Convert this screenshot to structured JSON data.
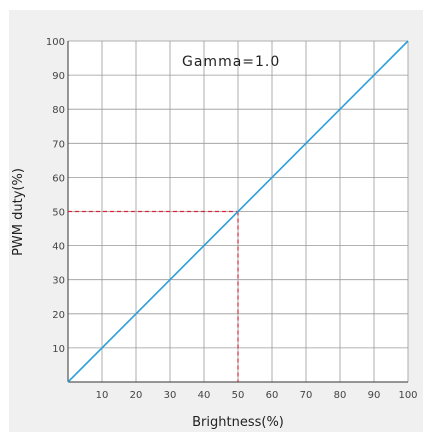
{
  "chart_data": {
    "type": "line",
    "title": "",
    "xlabel": "Brightness(%)",
    "ylabel": "PWM duty(%)",
    "xlim": [
      0,
      100
    ],
    "ylim": [
      0,
      100
    ],
    "x_ticks": [
      "10",
      "20",
      "30",
      "40",
      "50",
      "60",
      "70",
      "80",
      "90",
      "100"
    ],
    "y_ticks": [
      "10",
      "20",
      "30",
      "40",
      "50",
      "60",
      "70",
      "80",
      "90",
      "100"
    ],
    "grid": true,
    "legend": "none",
    "annotation": "Gamma=1.0",
    "series": [
      {
        "color": "#2a9fd8",
        "x": [
          0,
          100
        ],
        "y": [
          0,
          100
        ]
      }
    ],
    "guide": {
      "x": 50,
      "y": 50,
      "color": "#d9243a",
      "style": "dashed"
    }
  },
  "colors": {
    "background_panel": "#f0f0f0",
    "plot_area": "#ffffff",
    "grid": "#999999"
  }
}
